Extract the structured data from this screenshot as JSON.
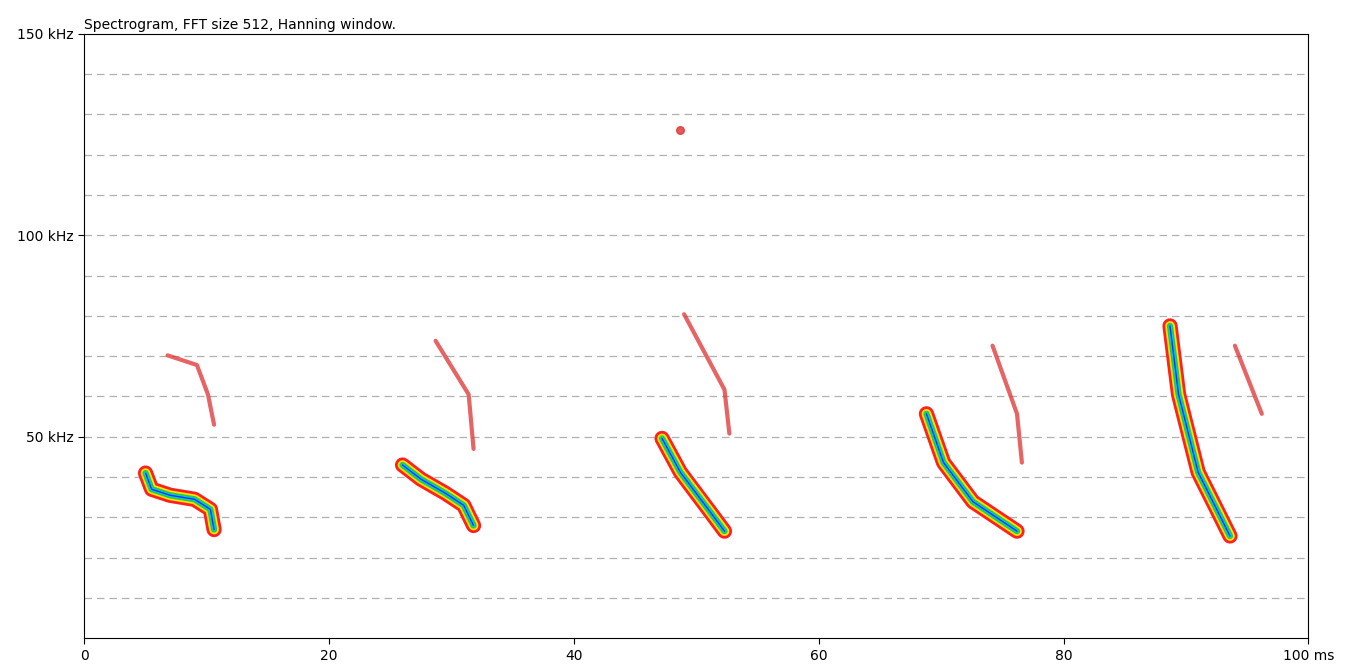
{
  "chart_data": {
    "type": "spectrogram",
    "title": "Spectrogram, FFT size 512, Hanning window.",
    "xlim": [
      0,
      100
    ],
    "xticks": [
      0,
      20,
      40,
      60,
      80,
      {
        "value": 100,
        "label": "100 ms"
      }
    ],
    "ylim": [
      0,
      150
    ],
    "yticks": [
      {
        "value": 50,
        "label": "50 kHz"
      },
      {
        "value": 100,
        "label": "100 kHz"
      },
      {
        "value": 150,
        "label": "150 kHz"
      }
    ],
    "grid": true,
    "calls": [
      {
        "x": [
          5.0,
          5.5,
          7.0,
          9.0,
          10.3,
          10.6
        ],
        "y": [
          41,
          37,
          35.5,
          34.5,
          32,
          27
        ],
        "harmonic": {
          "x": [
            6.8,
            9.2,
            10.1,
            10.6
          ],
          "y": [
            70.2,
            67.8,
            60.5,
            53
          ]
        }
      },
      {
        "x": [
          26.0,
          27.5,
          29.5,
          31.0,
          31.8
        ],
        "y": [
          43,
          39.5,
          36,
          33,
          28
        ],
        "harmonic": {
          "x": [
            28.7,
            31.4,
            31.8
          ],
          "y": [
            73.8,
            60.5,
            47
          ]
        }
      },
      {
        "x": [
          47.2,
          48.7,
          51.1,
          52.3
        ],
        "y": [
          49.6,
          41.2,
          31.5,
          26.6
        ],
        "harmonic": {
          "x": [
            49.0,
            52.3,
            52.7
          ],
          "y": [
            80.4,
            61.7,
            50.8
          ]
        }
      },
      {
        "x": [
          68.8,
          70.2,
          72.6,
          76.2
        ],
        "y": [
          55.7,
          43.6,
          33.9,
          26.6
        ],
        "harmonic": {
          "x": [
            74.2,
            76.2,
            76.6
          ],
          "y": [
            72.6,
            55.7,
            43.6
          ]
        }
      },
      {
        "x": [
          88.7,
          89.4,
          91.0,
          92.6,
          93.6
        ],
        "y": [
          77.5,
          60.5,
          41.2,
          31.5,
          25.4
        ],
        "harmonic": {
          "x": [
            94.0,
            96.2
          ],
          "y": [
            72.6,
            55.7
          ]
        }
      }
    ],
    "spots": {
      "x": [
        48.7
      ],
      "y": [
        126
      ]
    }
  }
}
